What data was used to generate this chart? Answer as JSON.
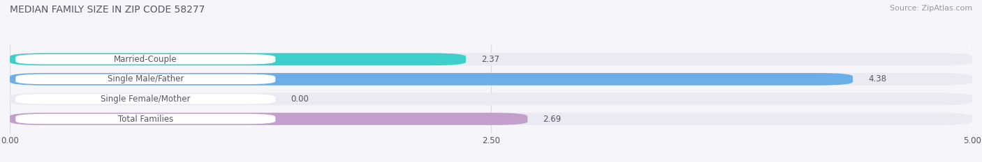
{
  "title": "MEDIAN FAMILY SIZE IN ZIP CODE 58277",
  "source": "Source: ZipAtlas.com",
  "categories": [
    "Married-Couple",
    "Single Male/Father",
    "Single Female/Mother",
    "Total Families"
  ],
  "values": [
    2.37,
    4.38,
    0.0,
    2.69
  ],
  "bar_colors": [
    "#3ECFCC",
    "#6BAEE8",
    "#F4A0B5",
    "#C3A0CC"
  ],
  "bar_bg_color": "#EAEAF2",
  "xlim": [
    0,
    5.0
  ],
  "xticks": [
    0.0,
    2.5,
    5.0
  ],
  "xtick_labels": [
    "0.00",
    "2.50",
    "5.00"
  ],
  "label_fontsize": 8.5,
  "value_fontsize": 8.5,
  "title_fontsize": 10,
  "source_fontsize": 8,
  "bar_height": 0.62,
  "background_color": "#F5F5FA",
  "white_pill_color": "#FFFFFF",
  "grid_color": "#D8D8E8",
  "text_color": "#555566",
  "title_color": "#555566"
}
